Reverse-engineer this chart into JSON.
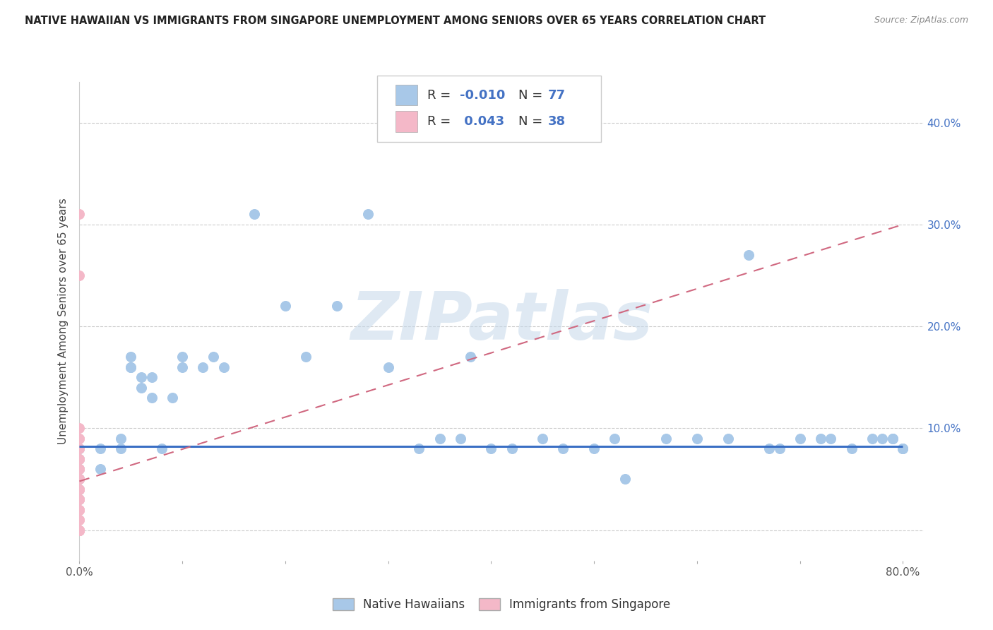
{
  "title": "NATIVE HAWAIIAN VS IMMIGRANTS FROM SINGAPORE UNEMPLOYMENT AMONG SENIORS OVER 65 YEARS CORRELATION CHART",
  "source": "Source: ZipAtlas.com",
  "ylabel": "Unemployment Among Seniors over 65 years",
  "xlim": [
    0.0,
    0.82
  ],
  "ylim": [
    -0.03,
    0.44
  ],
  "yticks": [
    0.0,
    0.1,
    0.2,
    0.3,
    0.4
  ],
  "ytick_labels_right": [
    "",
    "10.0%",
    "20.0%",
    "30.0%",
    "40.0%"
  ],
  "color_blue": "#a8c8e8",
  "color_pink": "#f4b8c8",
  "color_blue_dark": "#3a6fc4",
  "color_pink_dark": "#d06880",
  "color_text_blue": "#4472c4",
  "watermark": "ZIPatlas",
  "nh_trend_y0": 0.082,
  "nh_trend_y1": 0.082,
  "sg_trend_y0": 0.048,
  "sg_trend_y1": 0.3,
  "native_hawaiian_x": [
    0.0,
    0.0,
    0.0,
    0.0,
    0.0,
    0.0,
    0.0,
    0.0,
    0.02,
    0.02,
    0.04,
    0.04,
    0.05,
    0.05,
    0.05,
    0.06,
    0.06,
    0.07,
    0.07,
    0.08,
    0.09,
    0.1,
    0.1,
    0.12,
    0.13,
    0.14,
    0.17,
    0.2,
    0.22,
    0.25,
    0.28,
    0.3,
    0.33,
    0.35,
    0.37,
    0.38,
    0.4,
    0.42,
    0.45,
    0.47,
    0.5,
    0.52,
    0.53,
    0.57,
    0.6,
    0.63,
    0.65,
    0.67,
    0.68,
    0.7,
    0.72,
    0.73,
    0.75,
    0.77,
    0.78,
    0.79,
    0.79,
    0.8,
    0.8,
    0.8
  ],
  "native_hawaiian_y": [
    0.08,
    0.08,
    0.07,
    0.06,
    0.05,
    0.05,
    0.04,
    0.03,
    0.08,
    0.06,
    0.09,
    0.08,
    0.17,
    0.16,
    0.16,
    0.15,
    0.14,
    0.15,
    0.13,
    0.08,
    0.13,
    0.17,
    0.16,
    0.16,
    0.17,
    0.16,
    0.31,
    0.22,
    0.17,
    0.22,
    0.31,
    0.16,
    0.08,
    0.09,
    0.09,
    0.17,
    0.08,
    0.08,
    0.09,
    0.08,
    0.08,
    0.09,
    0.05,
    0.09,
    0.09,
    0.09,
    0.27,
    0.08,
    0.08,
    0.09,
    0.09,
    0.09,
    0.08,
    0.09,
    0.09,
    0.09,
    0.09,
    0.08,
    0.08,
    0.08
  ],
  "singapore_x": [
    0.0,
    0.0,
    0.0,
    0.0,
    0.0,
    0.0,
    0.0,
    0.0,
    0.0,
    0.0,
    0.0,
    0.0,
    0.0,
    0.0,
    0.0,
    0.0,
    0.0,
    0.0,
    0.0,
    0.0,
    0.0,
    0.0,
    0.0,
    0.0,
    0.0,
    0.0,
    0.0,
    0.0,
    0.0,
    0.0,
    0.0,
    0.0,
    0.0,
    0.0,
    0.0,
    0.0,
    0.0,
    0.0
  ],
  "singapore_y": [
    0.0,
    0.0,
    0.0,
    0.0,
    0.0,
    0.01,
    0.02,
    0.02,
    0.02,
    0.03,
    0.03,
    0.03,
    0.04,
    0.04,
    0.04,
    0.05,
    0.05,
    0.05,
    0.06,
    0.06,
    0.07,
    0.07,
    0.08,
    0.08,
    0.09,
    0.09,
    0.1,
    0.25,
    0.31,
    0.0,
    0.0,
    0.01,
    0.02,
    0.03,
    0.04,
    0.05,
    0.06,
    0.07
  ]
}
